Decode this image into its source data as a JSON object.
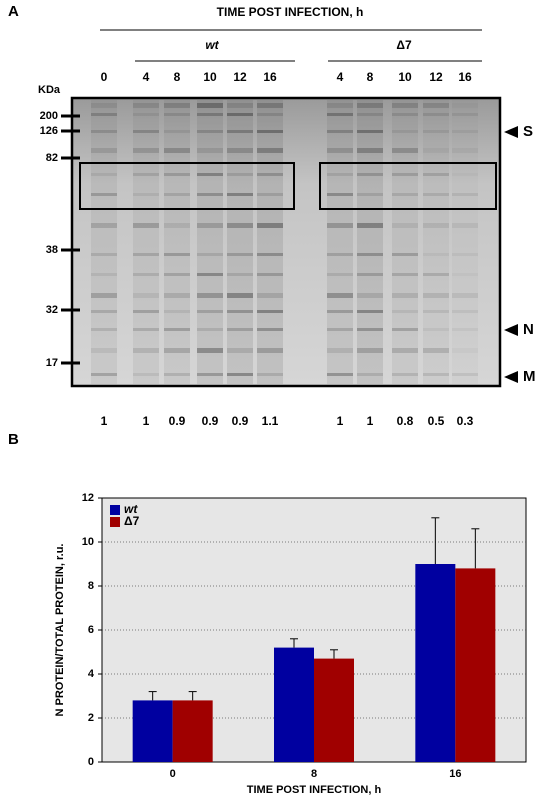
{
  "panel_a": {
    "label": "A",
    "header": "TIME POST INFECTION, h",
    "groups": [
      {
        "name": "wt",
        "lanes": [
          0,
          4,
          8,
          10,
          12,
          16
        ],
        "ratios": [
          1,
          1,
          0.9,
          0.9,
          0.9,
          1.1
        ]
      },
      {
        "name": "Δ7",
        "lanes": [
          4,
          8,
          10,
          12,
          16
        ],
        "ratios": [
          1,
          1,
          0.8,
          0.5,
          0.3
        ]
      }
    ],
    "marker_unit": "KDa",
    "markers": [
      200,
      126,
      82,
      38,
      32,
      17
    ],
    "bands": [
      "S",
      "N",
      "M"
    ]
  },
  "panel_b": {
    "label": "B"
  },
  "chart_data": {
    "type": "bar",
    "categories": [
      0,
      8,
      16
    ],
    "xlabel": "TIME POST INFECTION, h",
    "ylabel": "N PROTEIN/TOTAL PROTEIN, r.u.",
    "series": [
      {
        "name": "wt",
        "color": "#0000a0",
        "values": [
          2.8,
          5.2,
          9.0
        ],
        "errors": [
          0.4,
          0.4,
          2.1
        ]
      },
      {
        "name": "Δ7",
        "color": "#a00000",
        "values": [
          2.8,
          4.7,
          8.8
        ],
        "errors": [
          0.4,
          0.4,
          1.8
        ]
      }
    ],
    "ylim": [
      0,
      12
    ],
    "yticks": [
      0,
      2,
      4,
      6,
      8,
      10,
      12
    ],
    "grid": true
  }
}
